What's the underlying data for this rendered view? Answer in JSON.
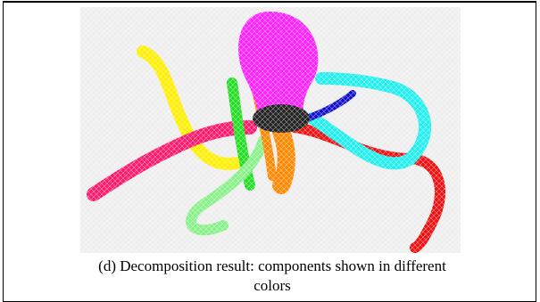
{
  "figure": {
    "caption": "(d) Decomposition result: components shown in different colors"
  }
}
